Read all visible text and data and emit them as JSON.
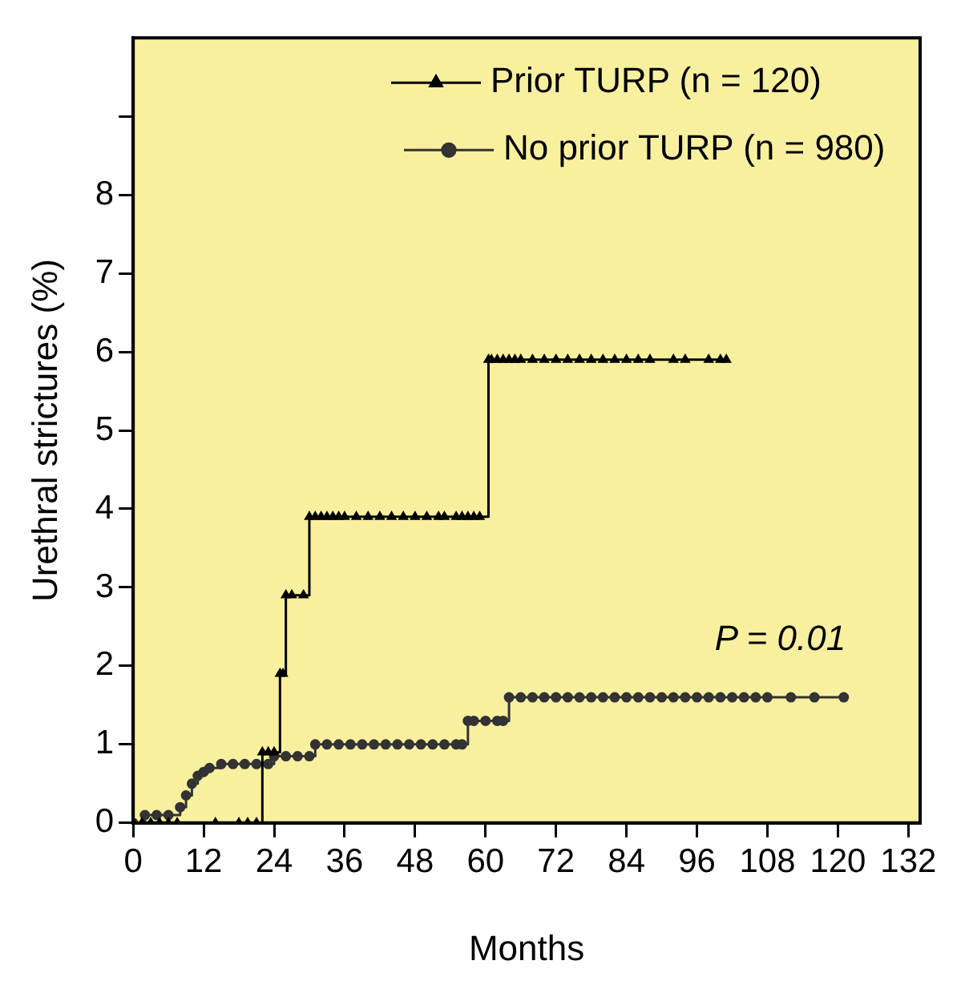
{
  "chart_data": {
    "type": "step",
    "xlabel": "Months",
    "ylabel": "Urethral strictures (%)",
    "xlim": [
      0,
      134
    ],
    "xticks": [
      0,
      12,
      24,
      36,
      48,
      60,
      72,
      84,
      96,
      108,
      120,
      132
    ],
    "ylim": [
      0,
      10
    ],
    "yticks": [
      0,
      1,
      2,
      3,
      4,
      5,
      6,
      7,
      8,
      {
        "value": 9,
        "label": null
      }
    ],
    "grid": false,
    "legend": "top right",
    "line_style": "solid",
    "annotations": [
      "P = 0.01"
    ],
    "series": [
      {
        "name": "Prior TURP (n = 120)",
        "color": "#000000",
        "marker": "triangle",
        "x": [
          0,
          1.5,
          3,
          4.5,
          6,
          7.5,
          14,
          18,
          19.5,
          21,
          22,
          23,
          24,
          25,
          25.5,
          26,
          27,
          29,
          30,
          31,
          32,
          33,
          34,
          35,
          36,
          38,
          40,
          42,
          44,
          46,
          48,
          50,
          52,
          53,
          55,
          56,
          57,
          58,
          59,
          60.5,
          61,
          62,
          63,
          64,
          65,
          66,
          68,
          70,
          72,
          74,
          76,
          78,
          80,
          82,
          84,
          86,
          88,
          92,
          94,
          98,
          100,
          101
        ],
        "values": [
          0,
          0,
          0,
          0,
          0,
          0,
          0,
          0,
          0,
          0,
          0.9,
          0.9,
          0.9,
          1.9,
          1.9,
          2.9,
          2.9,
          2.9,
          3.9,
          3.9,
          3.9,
          3.9,
          3.9,
          3.9,
          3.9,
          3.9,
          3.9,
          3.9,
          3.9,
          3.9,
          3.9,
          3.9,
          3.9,
          3.9,
          3.9,
          3.9,
          3.9,
          3.9,
          3.9,
          5.9,
          5.9,
          5.9,
          5.9,
          5.9,
          5.9,
          5.9,
          5.9,
          5.9,
          5.9,
          5.9,
          5.9,
          5.9,
          5.9,
          5.9,
          5.9,
          5.9,
          5.9,
          5.9,
          5.9,
          5.9,
          5.9,
          5.9
        ]
      },
      {
        "name": "No prior TURP (n = 980)",
        "color": "#333333",
        "marker": "circle",
        "x": [
          0,
          2,
          4,
          6,
          8,
          9,
          10,
          11,
          12,
          13,
          15,
          17,
          19,
          21,
          23,
          24,
          26,
          28,
          30,
          31,
          33,
          35,
          37,
          39,
          41,
          43,
          45,
          47,
          49,
          51,
          53,
          55,
          56,
          57,
          58,
          60,
          62,
          63,
          64,
          66,
          68,
          70,
          72,
          74,
          76,
          78,
          80,
          82,
          84,
          86,
          88,
          90,
          92,
          94,
          96,
          98,
          100,
          102,
          104,
          106,
          108,
          112,
          116,
          121
        ],
        "values": [
          0,
          0.1,
          0.1,
          0.1,
          0.2,
          0.35,
          0.5,
          0.6,
          0.65,
          0.7,
          0.75,
          0.75,
          0.75,
          0.75,
          0.75,
          0.85,
          0.85,
          0.85,
          0.85,
          1.0,
          1.0,
          1.0,
          1.0,
          1.0,
          1.0,
          1.0,
          1.0,
          1.0,
          1.0,
          1.0,
          1.0,
          1.0,
          1.0,
          1.3,
          1.3,
          1.3,
          1.3,
          1.3,
          1.6,
          1.6,
          1.6,
          1.6,
          1.6,
          1.6,
          1.6,
          1.6,
          1.6,
          1.6,
          1.6,
          1.6,
          1.6,
          1.6,
          1.6,
          1.6,
          1.6,
          1.6,
          1.6,
          1.6,
          1.6,
          1.6,
          1.6,
          1.6,
          1.6,
          1.6
        ]
      }
    ]
  }
}
